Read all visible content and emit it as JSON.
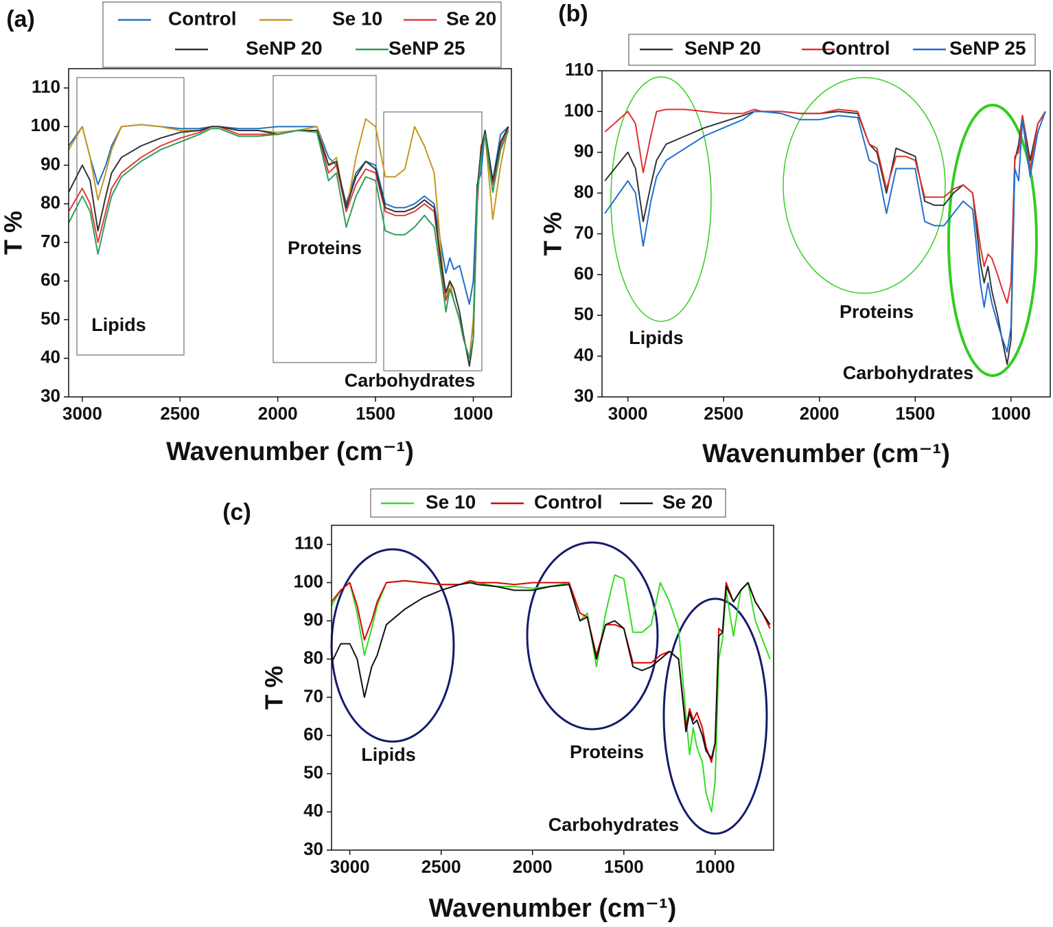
{
  "chart_data": [
    {
      "type": "line",
      "label": "(a)",
      "xlabel": "Wavenumber (cm⁻¹)",
      "ylabel": "T %",
      "xlim": [
        3070,
        805
      ],
      "xticks": [
        3000,
        2500,
        2000,
        1500,
        1000
      ],
      "ylim": [
        30,
        115
      ],
      "yticks": [
        30,
        40,
        50,
        60,
        70,
        80,
        90,
        100,
        110
      ],
      "annotations": [
        "Lipids",
        "Proteins",
        "Carbohydrates"
      ],
      "x": [
        3070,
        3000,
        2960,
        2920,
        2880,
        2850,
        2800,
        2700,
        2600,
        2500,
        2400,
        2340,
        2300,
        2200,
        2100,
        2000,
        1900,
        1800,
        1740,
        1700,
        1650,
        1600,
        1550,
        1500,
        1450,
        1400,
        1350,
        1300,
        1250,
        1200,
        1160,
        1140,
        1120,
        1100,
        1070,
        1050,
        1020,
        1000,
        980,
        960,
        940,
        900,
        860,
        820
      ],
      "series": [
        {
          "name": "Control",
          "color": "#1f6fc5",
          "values": [
            95,
            100,
            92,
            85,
            90,
            95,
            100,
            100.5,
            100,
            99.5,
            99.5,
            100,
            100,
            99.5,
            99.5,
            100,
            100,
            100,
            92,
            90,
            80,
            88,
            91,
            90,
            80,
            79,
            79,
            80,
            82,
            80,
            68,
            62,
            66,
            63,
            64,
            60,
            54,
            60,
            85,
            88,
            99,
            86,
            98,
            100
          ]
        },
        {
          "name": "Se 10",
          "color": "#c8961e",
          "values": [
            94,
            100,
            92,
            81,
            88,
            94,
            100,
            100.5,
            100,
            99,
            99,
            100,
            100,
            99,
            99,
            98.5,
            99,
            100,
            90,
            92,
            78,
            92,
            102,
            100,
            87,
            87,
            89,
            100,
            95,
            88,
            65,
            55,
            60,
            55,
            50,
            45,
            40,
            50,
            80,
            95,
            98,
            76,
            90,
            100
          ]
        },
        {
          "name": "Se 20",
          "color": "#e03a3a",
          "values": [
            78,
            84,
            80,
            70,
            78,
            84,
            88,
            92,
            95,
            97,
            98.5,
            100,
            100,
            98,
            98,
            98,
            99,
            99,
            88,
            90,
            78,
            85,
            89,
            88,
            78,
            77,
            77,
            78,
            80,
            78,
            62,
            55,
            58,
            55,
            50,
            45,
            40,
            45,
            80,
            95,
            98,
            85,
            95,
            100
          ]
        },
        {
          "name": "SeNP 20",
          "color": "#333333",
          "values": [
            83,
            90,
            86,
            73,
            82,
            88,
            92,
            95,
            97,
            98.5,
            99,
            100,
            100,
            99,
            99,
            98,
            99,
            99,
            90,
            91,
            79,
            87,
            91,
            89,
            79,
            78,
            78,
            79,
            81,
            79,
            63,
            57,
            60,
            58,
            52,
            46,
            38,
            45,
            84,
            94,
            99,
            86,
            96,
            100
          ]
        },
        {
          "name": "SeNP 25",
          "color": "#2e9e5b",
          "values": [
            75,
            82,
            78,
            67,
            76,
            82,
            87,
            91,
            94,
            96,
            98,
            99.5,
            99.5,
            97.5,
            97.5,
            98,
            99,
            98.5,
            86,
            88,
            74,
            82,
            87,
            86,
            73,
            72,
            72,
            74,
            77,
            74,
            60,
            52,
            58,
            55,
            50,
            45,
            40,
            45,
            82,
            92,
            98,
            83,
            94,
            99
          ]
        }
      ]
    },
    {
      "type": "line",
      "label": "(b)",
      "xlabel": "Wavenumber (cm⁻¹)",
      "ylabel": "T %",
      "xlim": [
        3135,
        795
      ],
      "xticks": [
        3000,
        2500,
        2000,
        1500,
        1000
      ],
      "ylim": [
        30,
        110
      ],
      "yticks": [
        30,
        40,
        50,
        60,
        70,
        80,
        90,
        100,
        110
      ],
      "annotations": [
        "Lipids",
        "Proteins",
        "Carbohydrates"
      ],
      "x": [
        3120,
        3000,
        2960,
        2920,
        2880,
        2850,
        2800,
        2700,
        2600,
        2500,
        2400,
        2340,
        2300,
        2200,
        2100,
        2000,
        1900,
        1800,
        1740,
        1700,
        1650,
        1600,
        1550,
        1500,
        1450,
        1400,
        1350,
        1300,
        1250,
        1200,
        1160,
        1140,
        1120,
        1100,
        1070,
        1050,
        1020,
        1000,
        980,
        960,
        940,
        900,
        860,
        820
      ],
      "series": [
        {
          "name": "SeNP 20",
          "color": "#333333",
          "values": [
            83,
            90,
            86,
            73,
            82,
            88,
            92,
            94,
            96,
            97.5,
            99,
            100,
            100,
            100,
            99.5,
            99.5,
            100,
            99.5,
            92,
            90,
            80,
            91,
            90,
            89,
            78,
            77,
            77,
            80,
            82,
            80,
            63,
            58,
            62,
            56,
            50,
            45,
            38,
            44,
            88,
            92,
            99,
            88,
            97,
            100
          ]
        },
        {
          "name": "Control",
          "color": "#e03030",
          "values": [
            95,
            100,
            97,
            85,
            94,
            100,
            100.5,
            100.5,
            100,
            99.5,
            99.5,
            100.5,
            100,
            100,
            99.5,
            99.5,
            100.5,
            100,
            92,
            91,
            81,
            89,
            89,
            88,
            79,
            79,
            79,
            81,
            82,
            80,
            67,
            62,
            65,
            64,
            60,
            57,
            53,
            58,
            89,
            90,
            99,
            86,
            97,
            100
          ]
        },
        {
          "name": "SeNP 25",
          "color": "#1f6fd0",
          "values": [
            75,
            83,
            80,
            67,
            78,
            84,
            88,
            91,
            94,
            96,
            98,
            100,
            100,
            99.5,
            98,
            98,
            99,
            98.5,
            88,
            87,
            75,
            86,
            86,
            86,
            73,
            72,
            72,
            75,
            78,
            76,
            58,
            52,
            58,
            53,
            48,
            45,
            41,
            47,
            86,
            83,
            98,
            84,
            95,
            100
          ]
        }
      ]
    },
    {
      "type": "line",
      "label": "(c)",
      "xlabel": "Wavenumber (cm⁻¹)",
      "ylabel": "T %",
      "xlim": [
        3100,
        680
      ],
      "xticks": [
        3000,
        2500,
        2000,
        1500,
        1000
      ],
      "ylim": [
        30,
        115
      ],
      "yticks": [
        30,
        40,
        50,
        60,
        70,
        80,
        90,
        100,
        110
      ],
      "annotations": [
        "Lipids",
        "Proteins",
        "Carbohydrates"
      ],
      "x": [
        3100,
        3050,
        3000,
        2960,
        2920,
        2880,
        2850,
        2800,
        2700,
        2600,
        2500,
        2400,
        2340,
        2300,
        2200,
        2100,
        2000,
        1900,
        1800,
        1740,
        1700,
        1650,
        1600,
        1550,
        1500,
        1450,
        1400,
        1350,
        1300,
        1250,
        1200,
        1160,
        1140,
        1120,
        1100,
        1070,
        1050,
        1020,
        1000,
        980,
        960,
        940,
        900,
        860,
        820,
        780,
        740,
        700
      ],
      "series": [
        {
          "name": "Se 10",
          "color": "#33dd22",
          "values": [
            94,
            98,
            100,
            92,
            81,
            88,
            94,
            100,
            100.5,
            100,
            99.5,
            99.5,
            100,
            100,
            99,
            99,
            98.5,
            99,
            100,
            90,
            92,
            78,
            92,
            102,
            101,
            87,
            87,
            89,
            100,
            95,
            88,
            65,
            55,
            62,
            57,
            53,
            45,
            40,
            48,
            80,
            85,
            98,
            86,
            98,
            100,
            90,
            85,
            80
          ]
        },
        {
          "name": "Control",
          "color": "#dd0000",
          "values": [
            95,
            98,
            100,
            94,
            85,
            90,
            95,
            100,
            100.5,
            100,
            99.5,
            99.5,
            100.5,
            100,
            100,
            99.5,
            100,
            100,
            100,
            92,
            91,
            81,
            89,
            89,
            88,
            79,
            79,
            79,
            81,
            82,
            80,
            62,
            67,
            64,
            66,
            62,
            57,
            53,
            58,
            88,
            87,
            100,
            95,
            98,
            100,
            95,
            92,
            88
          ]
        },
        {
          "name": "Se 20",
          "color": "#111111",
          "values": [
            79,
            84,
            84,
            80,
            70,
            78,
            81,
            89,
            93,
            96,
            98,
            99.5,
            100,
            99.5,
            99,
            98,
            98,
            99,
            99.5,
            90,
            91,
            80,
            89,
            90,
            88,
            78,
            77,
            78,
            80,
            82,
            80,
            61,
            66,
            63,
            64,
            60,
            56,
            54,
            58,
            86,
            87,
            99,
            95,
            98,
            100,
            95,
            92,
            89
          ]
        }
      ]
    }
  ]
}
